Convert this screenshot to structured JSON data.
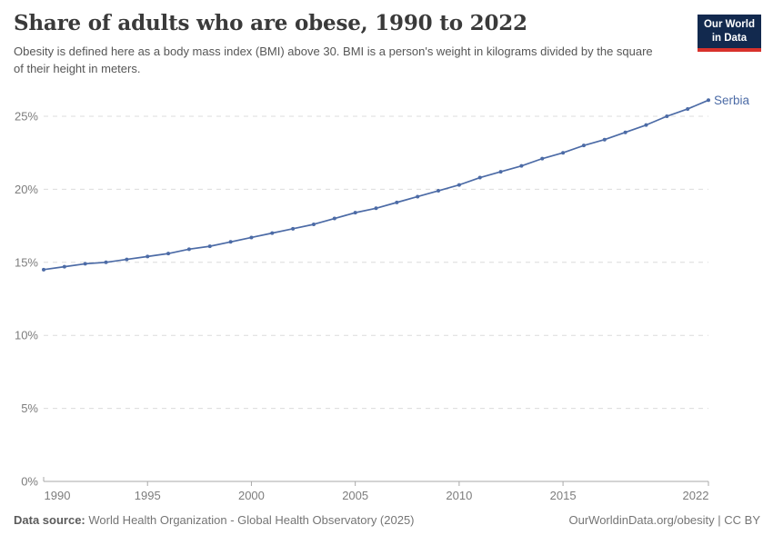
{
  "header": {
    "title": "Share of adults who are obese, 1990 to 2022",
    "subtitle": "Obesity is defined here as a body mass index (BMI) above 30. BMI is a person's weight in kilograms divided by the square of their height in meters."
  },
  "logo": {
    "line1": "Our World",
    "line2": "in Data",
    "bg_color": "#12294e",
    "bar_color": "#d8322c"
  },
  "chart_data": {
    "type": "line",
    "title": "Share of adults who are obese, 1990 to 2022",
    "xlabel": "",
    "ylabel": "",
    "xlim": [
      1990,
      2022
    ],
    "ylim": [
      0,
      25
    ],
    "grid": "dashed-horizontal",
    "legend_position": "end-of-line",
    "x": [
      1990,
      1991,
      1992,
      1993,
      1994,
      1995,
      1996,
      1997,
      1998,
      1999,
      2000,
      2001,
      2002,
      2003,
      2004,
      2005,
      2006,
      2007,
      2008,
      2009,
      2010,
      2011,
      2012,
      2013,
      2014,
      2015,
      2016,
      2017,
      2018,
      2019,
      2020,
      2021,
      2022
    ],
    "series": [
      {
        "name": "Serbia",
        "values": [
          14.5,
          14.7,
          14.9,
          15.0,
          15.2,
          15.4,
          15.6,
          15.9,
          16.1,
          16.4,
          16.7,
          17.0,
          17.3,
          17.6,
          18.0,
          18.4,
          18.7,
          19.1,
          19.5,
          19.9,
          20.3,
          20.8,
          21.2,
          21.6,
          22.1,
          22.5,
          23.0,
          23.4,
          23.9,
          24.4,
          25.0,
          25.5,
          26.1
        ]
      }
    ],
    "yticks": [
      {
        "value": 0,
        "label": "0%"
      },
      {
        "value": 5,
        "label": "5%"
      },
      {
        "value": 10,
        "label": "10%"
      },
      {
        "value": 15,
        "label": "15%"
      },
      {
        "value": 20,
        "label": "20%"
      },
      {
        "value": 25,
        "label": "25%"
      }
    ],
    "xticks": [
      {
        "value": 1990,
        "label": "1990"
      },
      {
        "value": 1995,
        "label": "1995"
      },
      {
        "value": 2000,
        "label": "2000"
      },
      {
        "value": 2005,
        "label": "2005"
      },
      {
        "value": 2010,
        "label": "2010"
      },
      {
        "value": 2015,
        "label": "2015"
      },
      {
        "value": 2022,
        "label": "2022"
      }
    ],
    "colors": {
      "line": "#4c6ba6",
      "grid": "#dcdcdc",
      "axis": "#a9a9a9"
    }
  },
  "footer": {
    "datasource_label": "Data source:",
    "datasource_text": " World Health Organization - Global Health Observatory (2025)",
    "right_text": "OurWorldinData.org/obesity | CC BY"
  }
}
